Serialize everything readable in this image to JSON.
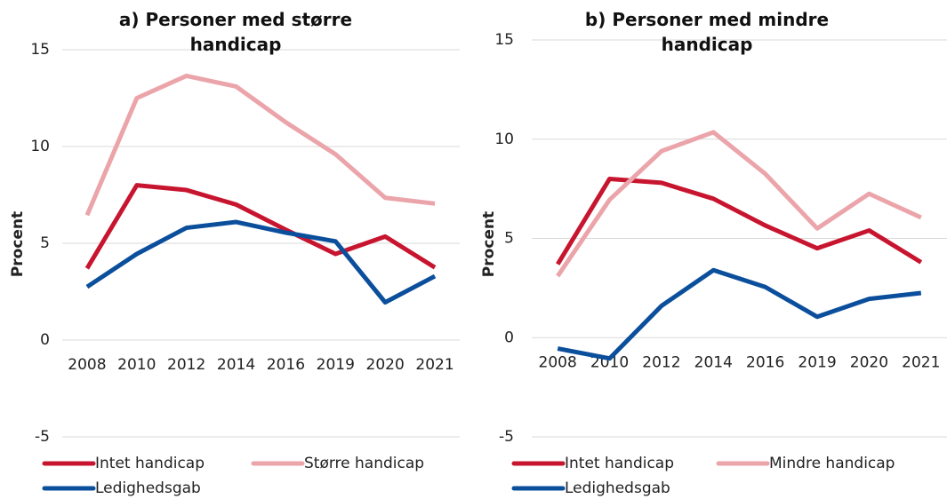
{
  "chart_data": [
    {
      "type": "line",
      "title": "a) Personer med større handicap",
      "y_label": "Procent",
      "categories": [
        "2008",
        "2010",
        "2012",
        "2014",
        "2016",
        "2019",
        "2020",
        "2021"
      ],
      "ylim": [
        -5,
        15
      ],
      "yticks": [
        -5,
        0,
        5,
        10,
        15
      ],
      "grid": true,
      "series": [
        {
          "name": "Intet handicap",
          "color": "#c8152f",
          "values": [
            3.7,
            8.0,
            7.75,
            7.0,
            5.7,
            4.45,
            5.35,
            3.75
          ]
        },
        {
          "name": "Større handicap",
          "color": "#eba5aa",
          "values": [
            6.45,
            12.5,
            13.65,
            13.1,
            11.25,
            9.6,
            7.35,
            7.05
          ]
        },
        {
          "name": "Ledighedsgab",
          "color": "#0b4f9c",
          "values": [
            2.75,
            4.45,
            5.8,
            6.1,
            5.55,
            5.1,
            1.95,
            3.3
          ]
        }
      ]
    },
    {
      "type": "line",
      "title": "b) Personer med mindre handicap",
      "y_label": "Procent",
      "categories": [
        "2008",
        "2010",
        "2012",
        "2014",
        "2016",
        "2019",
        "2020",
        "2021"
      ],
      "ylim": [
        -5,
        15
      ],
      "yticks": [
        -5,
        0,
        5,
        10,
        15
      ],
      "grid": true,
      "series": [
        {
          "name": "Intet handicap",
          "color": "#c8152f",
          "values": [
            3.7,
            8.0,
            7.8,
            7.0,
            5.65,
            4.5,
            5.4,
            3.8
          ]
        },
        {
          "name": "Mindre handicap",
          "color": "#eba5aa",
          "values": [
            3.1,
            6.95,
            9.4,
            10.35,
            8.25,
            5.5,
            7.25,
            6.05
          ]
        },
        {
          "name": "Ledighedsgab",
          "color": "#0b4f9c",
          "values": [
            -0.55,
            -1.05,
            1.6,
            3.4,
            2.55,
            1.05,
            1.95,
            2.25
          ]
        }
      ]
    }
  ]
}
